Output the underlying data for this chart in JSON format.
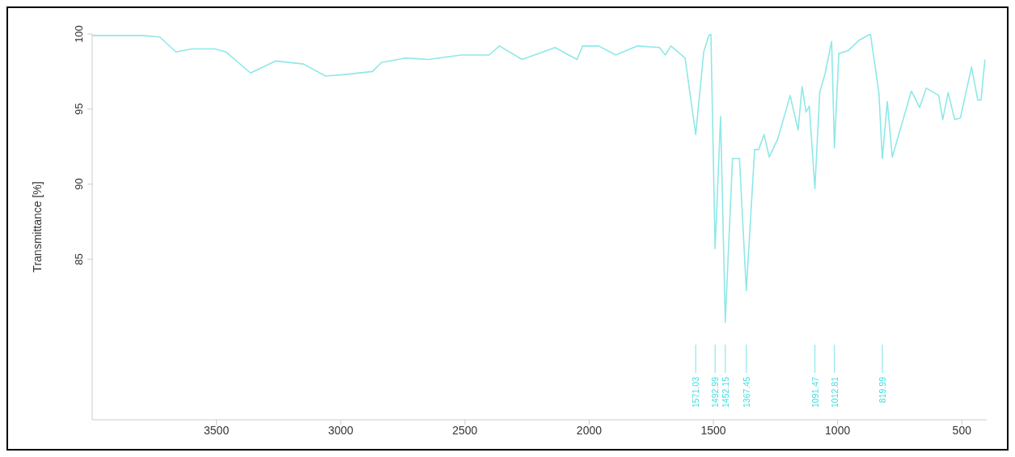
{
  "chart_data": {
    "type": "line",
    "ylabel": "Transmittance [%]",
    "color": "#8ee8e8",
    "x": [
      4000,
      3900,
      3800,
      3728,
      3663,
      3600,
      3506,
      3461,
      3363,
      3262,
      3150,
      3061,
      2983,
      2872,
      2836,
      2739,
      2647,
      2514,
      2403,
      2361,
      2270,
      2137,
      2049,
      2026,
      1961,
      1893,
      1805,
      1717,
      1694,
      1671,
      1614,
      1571.03,
      1539,
      1518,
      1510,
      1492.99,
      1471,
      1452.15,
      1423,
      1395,
      1367.45,
      1334,
      1318,
      1296,
      1275,
      1241,
      1191,
      1159,
      1143,
      1127,
      1114,
      1091.47,
      1072,
      1050,
      1024,
      1012.81,
      995,
      957,
      912,
      868,
      834,
      819.99,
      800,
      780,
      747,
      703,
      670,
      643,
      593,
      577,
      555,
      529,
      506,
      461,
      436,
      423,
      407
    ],
    "values": [
      99.9,
      99.9,
      99.9,
      99.8,
      98.8,
      99.0,
      99.0,
      98.8,
      97.4,
      98.2,
      98.0,
      97.2,
      97.3,
      97.5,
      98.1,
      98.4,
      98.3,
      98.6,
      98.6,
      99.2,
      98.3,
      99.1,
      98.3,
      99.2,
      99.2,
      98.6,
      99.2,
      99.1,
      98.6,
      99.2,
      98.4,
      93.3,
      98.8,
      99.9,
      100,
      85.7,
      94.5,
      80.8,
      91.7,
      91.7,
      82.9,
      92.3,
      92.3,
      93.3,
      91.8,
      93.0,
      95.9,
      93.6,
      96.5,
      94.8,
      95.2,
      89.7,
      96.1,
      97.4,
      99.5,
      92.4,
      98.7,
      98.9,
      99.6,
      100,
      96.1,
      91.7,
      95.5,
      91.8,
      93.7,
      96.2,
      95.1,
      96.4,
      95.9,
      94.3,
      96.1,
      94.3,
      94.4,
      97.8,
      95.6,
      95.6,
      98.3
    ],
    "xlim": [
      4000,
      400
    ],
    "xticks": [
      3500,
      3000,
      2500,
      2000,
      1500,
      1000,
      500
    ],
    "ylim": [
      74.3,
      100
    ],
    "yticks": [
      85,
      90,
      95,
      100
    ],
    "grid": false,
    "legend": false,
    "marker": "none",
    "line_style": "solid",
    "ref_lines": [
      {
        "axis": "x",
        "value": 1571.03,
        "label": "1571.03",
        "color": "#8ee8e8"
      },
      {
        "axis": "x",
        "value": 1492.99,
        "label": "1492.99",
        "color": "#8ee8e8"
      },
      {
        "axis": "x",
        "value": 1452.15,
        "label": "1452.15",
        "color": "#8ee8e8"
      },
      {
        "axis": "x",
        "value": 1367.45,
        "label": "1367.45",
        "color": "#8ee8e8"
      },
      {
        "axis": "x",
        "value": 1091.47,
        "label": "1091.47",
        "color": "#8ee8e8"
      },
      {
        "axis": "x",
        "value": 1012.81,
        "label": "1012.81",
        "color": "#8ee8e8"
      },
      {
        "axis": "x",
        "value": 819.99,
        "label": "819.99",
        "color": "#8ee8e8"
      }
    ]
  }
}
